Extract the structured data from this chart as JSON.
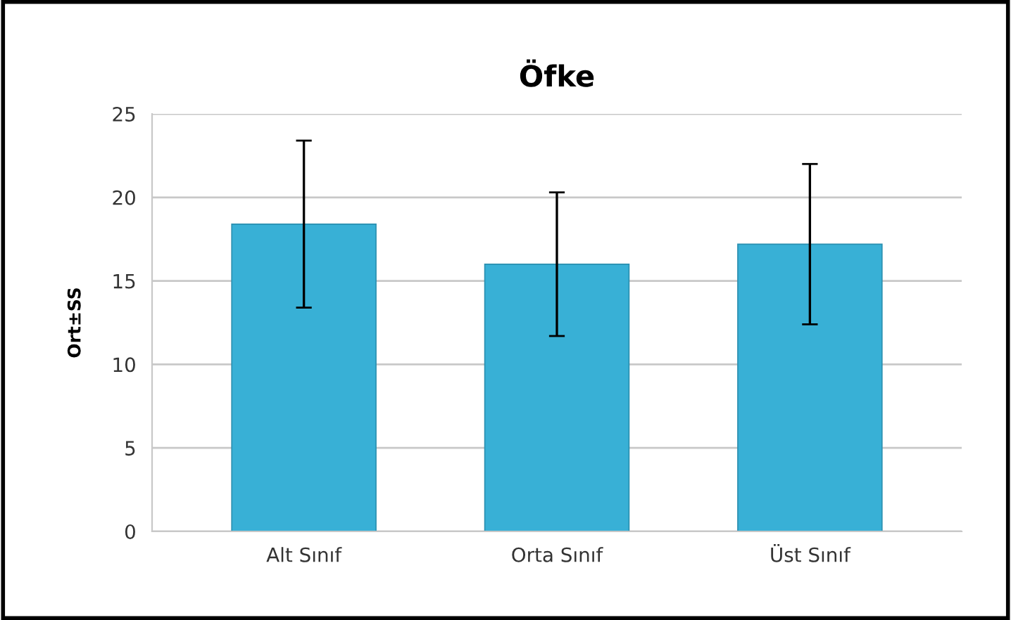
{
  "chart_data": {
    "type": "bar",
    "title": "Öfke",
    "ylabel": "Ort±SS",
    "categories": [
      "Alt Sınıf",
      "Orta Sınıf",
      "Üst Sınıf"
    ],
    "values": [
      18.4,
      16.0,
      17.2
    ],
    "errors": [
      5.0,
      4.3,
      4.8
    ],
    "color": "#38b0d6",
    "ylim": [
      0,
      25
    ],
    "yticks": [
      0,
      5,
      10,
      15,
      20,
      25
    ],
    "grid": "y",
    "legend": false
  }
}
